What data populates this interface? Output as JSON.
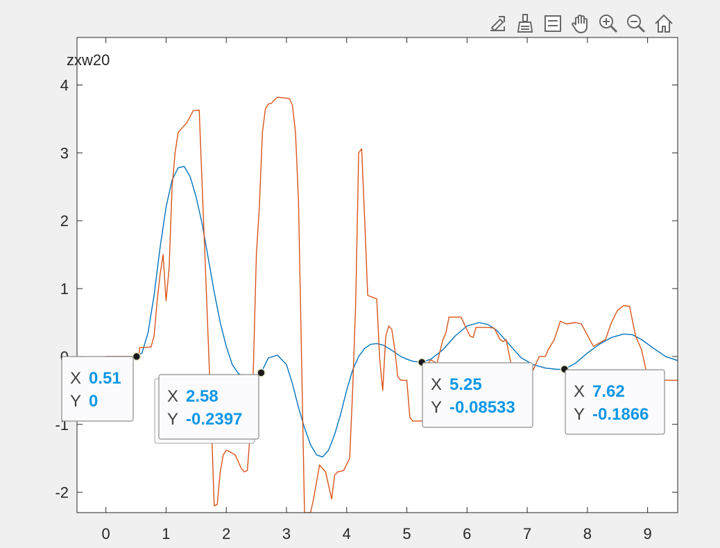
{
  "toolbar": {
    "buttons": [
      {
        "name": "export-icon"
      },
      {
        "name": "brush-icon"
      },
      {
        "name": "legend-icon"
      },
      {
        "name": "pan-icon"
      },
      {
        "name": "zoom-in-icon"
      },
      {
        "name": "zoom-out-icon"
      },
      {
        "name": "home-icon"
      }
    ]
  },
  "colors": {
    "series_blue": "#0072bd",
    "series_orange": "#d95319",
    "datatip_value": "#0f97e6"
  },
  "chart_data": {
    "type": "line",
    "title": "",
    "ylabel_top": "zxw20",
    "xlim": [
      -0.48,
      9.5
    ],
    "ylim": [
      -2.3,
      4.7
    ],
    "xticks": [
      0,
      1,
      2,
      3,
      4,
      5,
      6,
      7,
      8,
      9
    ],
    "yticks": [
      -2,
      -1,
      0,
      1,
      2,
      3,
      4
    ],
    "xtick_labels": [
      "0",
      "1",
      "2",
      "3",
      "4",
      "5",
      "6",
      "7",
      "8",
      "9"
    ],
    "ytick_labels": [
      "-2",
      "-1",
      "0",
      "1",
      "2",
      "3",
      "4"
    ],
    "grid": false,
    "series": [
      {
        "color": "#0072bd",
        "x": [
          0.0,
          0.51,
          0.6,
          0.7,
          0.8,
          0.9,
          1.0,
          1.1,
          1.2,
          1.3,
          1.4,
          1.5,
          1.6,
          1.7,
          1.8,
          1.9,
          2.0,
          2.1,
          2.2,
          2.3,
          2.4,
          2.5,
          2.58,
          2.7,
          2.85,
          3.0,
          3.1,
          3.2,
          3.3,
          3.4,
          3.5,
          3.6,
          3.7,
          3.8,
          3.9,
          4.0,
          4.1,
          4.2,
          4.3,
          4.4,
          4.5,
          4.6,
          4.7,
          4.8,
          4.9,
          5.0,
          5.1,
          5.25,
          5.4,
          5.6,
          5.8,
          6.0,
          6.2,
          6.35,
          6.5,
          6.7,
          6.9,
          7.1,
          7.3,
          7.5,
          7.62,
          7.8,
          8.0,
          8.2,
          8.4,
          8.6,
          8.75,
          8.9,
          9.1,
          9.3,
          9.5
        ],
        "y": [
          0.0,
          0.0,
          0.05,
          0.35,
          0.9,
          1.6,
          2.2,
          2.6,
          2.78,
          2.8,
          2.65,
          2.35,
          1.95,
          1.45,
          0.95,
          0.5,
          0.15,
          -0.12,
          -0.25,
          -0.3,
          -0.3,
          -0.27,
          -0.2397,
          -0.02,
          0.02,
          -0.12,
          -0.4,
          -0.75,
          -1.05,
          -1.3,
          -1.45,
          -1.48,
          -1.38,
          -1.15,
          -0.85,
          -0.5,
          -0.2,
          0.0,
          0.12,
          0.18,
          0.19,
          0.17,
          0.12,
          0.06,
          0.0,
          -0.04,
          -0.07,
          -0.08533,
          -0.04,
          0.1,
          0.3,
          0.45,
          0.5,
          0.47,
          0.38,
          0.18,
          -0.02,
          -0.12,
          -0.17,
          -0.19,
          -0.1866,
          -0.1,
          0.05,
          0.18,
          0.28,
          0.33,
          0.32,
          0.25,
          0.12,
          0.0,
          -0.06
        ]
      },
      {
        "color": "#d95319",
        "x": [
          0.0,
          0.55,
          0.56,
          0.75,
          0.8,
          0.85,
          0.9,
          0.95,
          1.0,
          1.05,
          1.1,
          1.15,
          1.2,
          1.25,
          1.3,
          1.35,
          1.45,
          1.55,
          1.6,
          1.65,
          1.75,
          1.8,
          1.85,
          1.9,
          1.95,
          2.0,
          2.05,
          2.15,
          2.25,
          2.3,
          2.35,
          2.4,
          2.45,
          2.5,
          2.55,
          2.6,
          2.65,
          2.7,
          2.75,
          2.8,
          2.85,
          3.05,
          3.1,
          3.15,
          3.2,
          3.25,
          3.3,
          3.32,
          3.4,
          3.45,
          3.55,
          3.65,
          3.75,
          3.8,
          3.85,
          3.95,
          4.05,
          4.1,
          4.15,
          4.2,
          4.25,
          4.3,
          4.35,
          4.5,
          4.55,
          4.6,
          4.65,
          4.7,
          4.75,
          4.8,
          4.85,
          4.9,
          5.0,
          5.05,
          5.1,
          5.2,
          5.3,
          5.35,
          5.4,
          5.5,
          5.6,
          5.65,
          5.7,
          5.8,
          5.9,
          6.05,
          6.1,
          6.15,
          6.3,
          6.45,
          6.55,
          6.6,
          6.65,
          6.75,
          6.9,
          7.0,
          7.1,
          7.2,
          7.3,
          7.35,
          7.45,
          7.55,
          7.65,
          7.8,
          7.9,
          8.1,
          8.2,
          8.3,
          8.4,
          8.5,
          8.6,
          8.7,
          8.8,
          8.9,
          9.0,
          9.1,
          9.2,
          9.25,
          9.5
        ],
        "y": [
          0.0,
          0.0,
          0.13,
          0.14,
          0.3,
          0.8,
          1.2,
          1.5,
          0.82,
          1.3,
          2.5,
          3.0,
          3.3,
          3.35,
          3.4,
          3.45,
          3.62,
          3.63,
          2.5,
          1.4,
          -0.9,
          -2.2,
          -2.18,
          -1.7,
          -1.45,
          -1.38,
          -1.4,
          -1.45,
          -1.65,
          -1.7,
          -1.68,
          -1.1,
          -0.2,
          1.5,
          2.2,
          3.3,
          3.65,
          3.72,
          3.73,
          3.78,
          3.82,
          3.8,
          3.7,
          3.3,
          2.3,
          0.0,
          -2.3,
          -2.3,
          -2.3,
          -2.1,
          -1.6,
          -1.7,
          -2.1,
          -1.75,
          -1.7,
          -1.68,
          -1.5,
          -0.5,
          0.8,
          3.0,
          3.06,
          2.0,
          0.9,
          0.85,
          -0.05,
          -0.5,
          0.3,
          0.45,
          0.4,
          0.1,
          -0.3,
          -0.35,
          -0.35,
          -0.9,
          -0.95,
          -0.95,
          -0.95,
          -0.1,
          -0.05,
          -0.1,
          0.25,
          0.35,
          0.58,
          0.58,
          0.58,
          0.3,
          0.28,
          0.43,
          0.43,
          0.42,
          0.25,
          0.22,
          0.25,
          -0.2,
          -0.2,
          -0.2,
          -0.2,
          0.0,
          0.0,
          0.1,
          0.25,
          0.52,
          0.48,
          0.5,
          0.48,
          0.15,
          0.2,
          0.25,
          0.5,
          0.68,
          0.75,
          0.74,
          0.3,
          0.1,
          -0.3,
          -0.35,
          -0.35,
          -0.35,
          -0.35
        ]
      }
    ],
    "markers": [
      {
        "x": 0.51,
        "y": 0
      },
      {
        "x": 2.58,
        "y": -0.2397
      },
      {
        "x": 5.25,
        "y": -0.08533
      },
      {
        "x": 7.62,
        "y": -0.1866
      }
    ],
    "datatips": [
      {
        "x_label": "X",
        "x_value": "0.51",
        "y_label": "Y",
        "y_value": "0"
      },
      {
        "x_label": "X",
        "x_value": "2.58",
        "y_label": "Y",
        "y_value": "-0.2397"
      },
      {
        "x_label": "X",
        "x_value": "5.25",
        "y_label": "Y",
        "y_value": "-0.08533"
      },
      {
        "x_label": "X",
        "x_value": "7.62",
        "y_label": "Y",
        "y_value": "-0.1866"
      }
    ]
  }
}
